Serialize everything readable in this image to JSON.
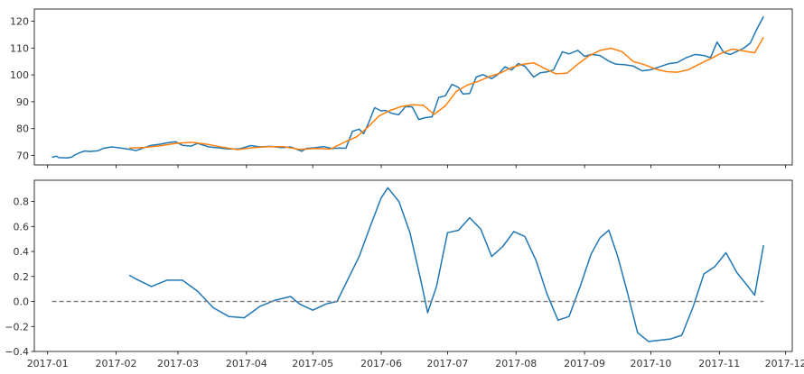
{
  "chart_data": [
    {
      "type": "line",
      "title": "",
      "xlabel": "",
      "ylabel": "",
      "x_range": [
        "2016-12-26",
        "2017-12-04"
      ],
      "ylim": [
        66.5,
        124.5
      ],
      "grid": false,
      "y_ticks": [
        70,
        80,
        90,
        100,
        110,
        120
      ],
      "x_ticks": [
        "2017-01",
        "2017-02",
        "2017-03",
        "2017-04",
        "2017-05",
        "2017-06",
        "2017-07",
        "2017-08",
        "2017-09",
        "2017-10",
        "2017-11",
        "2017-12"
      ],
      "x_tick_labels_shown": false,
      "colors": [
        "#1f77b4",
        "#ff7f0e"
      ],
      "series": [
        {
          "x": [
            "2017-01-03",
            "2017-01-05",
            "2017-01-06",
            "2017-01-10",
            "2017-01-12",
            "2017-01-13",
            "2017-01-16",
            "2017-01-18",
            "2017-01-20",
            "2017-01-24",
            "2017-01-26",
            "2017-01-30",
            "2017-02-03",
            "2017-02-08",
            "2017-02-10",
            "2017-02-14",
            "2017-02-17",
            "2017-02-21",
            "2017-02-24",
            "2017-02-28",
            "2017-03-03",
            "2017-03-07",
            "2017-03-10",
            "2017-03-15",
            "2017-03-20",
            "2017-03-24",
            "2017-03-29",
            "2017-04-03",
            "2017-04-07",
            "2017-04-12",
            "2017-04-17",
            "2017-04-21",
            "2017-04-26",
            "2017-04-28",
            "2017-05-02",
            "2017-05-06",
            "2017-05-10",
            "2017-05-13",
            "2017-05-16",
            "2017-05-19",
            "2017-05-22",
            "2017-05-24",
            "2017-05-26",
            "2017-05-29",
            "2017-06-01",
            "2017-06-03",
            "2017-06-06",
            "2017-06-09",
            "2017-06-12",
            "2017-06-15",
            "2017-06-18",
            "2017-06-21",
            "2017-06-24",
            "2017-06-27",
            "2017-06-30",
            "2017-07-03",
            "2017-07-06",
            "2017-07-08",
            "2017-07-11",
            "2017-07-14",
            "2017-07-17",
            "2017-07-21",
            "2017-07-24",
            "2017-07-27",
            "2017-07-30",
            "2017-08-02",
            "2017-08-05",
            "2017-08-09",
            "2017-08-12",
            "2017-08-15",
            "2017-08-18",
            "2017-08-22",
            "2017-08-25",
            "2017-08-29",
            "2017-09-01",
            "2017-09-04",
            "2017-09-08",
            "2017-09-12",
            "2017-09-15",
            "2017-09-19",
            "2017-09-23",
            "2017-09-27",
            "2017-10-01",
            "2017-10-05",
            "2017-10-09",
            "2017-10-13",
            "2017-10-17",
            "2017-10-21",
            "2017-10-25",
            "2017-10-28",
            "2017-10-31",
            "2017-11-03",
            "2017-11-06",
            "2017-11-09",
            "2017-11-12",
            "2017-11-15",
            "2017-11-18",
            "2017-11-21"
          ],
          "y": [
            69.3,
            69.8,
            69.2,
            69.1,
            69.4,
            70.1,
            71.2,
            71.7,
            71.5,
            71.8,
            72.6,
            73.2,
            72.8,
            72.2,
            71.8,
            73.0,
            73.8,
            74.2,
            74.7,
            75.1,
            73.8,
            73.5,
            74.5,
            73.2,
            72.8,
            72.4,
            72.5,
            73.7,
            73.2,
            73.4,
            72.9,
            73.2,
            71.6,
            72.6,
            72.9,
            73.3,
            72.6,
            72.8,
            72.7,
            79.0,
            79.8,
            78.1,
            81.6,
            87.8,
            86.6,
            86.8,
            85.6,
            85.2,
            88.2,
            88.1,
            83.4,
            84.1,
            84.4,
            91.6,
            92.2,
            96.5,
            95.3,
            92.9,
            93.1,
            99.2,
            100.1,
            98.6,
            100.3,
            103.0,
            101.8,
            104.2,
            103.2,
            99.2,
            100.8,
            101.1,
            101.9,
            108.6,
            107.8,
            109.1,
            106.9,
            107.6,
            107.2,
            105.1,
            104.0,
            103.8,
            103.3,
            101.5,
            101.9,
            103.0,
            104.1,
            104.6,
            106.4,
            107.6,
            107.2,
            106.4,
            112.2,
            108.3,
            107.6,
            108.7,
            109.9,
            111.8,
            117.1,
            121.7
          ]
        },
        {
          "x": [
            "2017-02-07",
            "2017-02-14",
            "2017-02-21",
            "2017-02-28",
            "2017-03-07",
            "2017-03-14",
            "2017-03-21",
            "2017-03-28",
            "2017-04-04",
            "2017-04-11",
            "2017-04-18",
            "2017-04-25",
            "2017-05-02",
            "2017-05-09",
            "2017-05-16",
            "2017-05-21",
            "2017-05-26",
            "2017-05-31",
            "2017-06-05",
            "2017-06-10",
            "2017-06-15",
            "2017-06-20",
            "2017-06-25",
            "2017-06-30",
            "2017-07-05",
            "2017-07-10",
            "2017-07-15",
            "2017-07-20",
            "2017-07-25",
            "2017-07-30",
            "2017-08-04",
            "2017-08-09",
            "2017-08-14",
            "2017-08-19",
            "2017-08-24",
            "2017-08-29",
            "2017-09-03",
            "2017-09-08",
            "2017-09-13",
            "2017-09-18",
            "2017-09-23",
            "2017-09-28",
            "2017-10-03",
            "2017-10-08",
            "2017-10-13",
            "2017-10-18",
            "2017-10-23",
            "2017-10-28",
            "2017-11-02",
            "2017-11-07",
            "2017-11-12",
            "2017-11-17",
            "2017-11-21"
          ],
          "y": [
            72.8,
            73.0,
            73.6,
            74.5,
            74.9,
            74.2,
            73.1,
            72.2,
            72.9,
            73.3,
            73.3,
            72.3,
            72.6,
            72.4,
            75.2,
            77.0,
            80.6,
            84.7,
            86.8,
            88.2,
            88.9,
            88.7,
            85.3,
            88.5,
            93.9,
            96.2,
            97.6,
            99.4,
            100.7,
            102.7,
            103.9,
            104.5,
            102.4,
            100.4,
            100.6,
            104.0,
            107.1,
            109.1,
            109.9,
            108.6,
            105.0,
            103.8,
            102.2,
            101.2,
            101.0,
            101.9,
            104.0,
            106.0,
            108.1,
            109.6,
            108.9,
            108.2,
            114.0
          ]
        }
      ]
    },
    {
      "type": "line",
      "title": "",
      "xlabel": "",
      "ylabel": "",
      "x_range": [
        "2016-12-26",
        "2017-12-04"
      ],
      "ylim": [
        -0.4,
        0.97
      ],
      "grid": false,
      "y_ticks": [
        -0.4,
        -0.2,
        0.0,
        0.2,
        0.4,
        0.6,
        0.8
      ],
      "y_tick_labels": [
        "−0.4",
        "−0.2",
        "0.0",
        "0.2",
        "0.4",
        "0.6",
        "0.8"
      ],
      "x_ticks": [
        "2017-01",
        "2017-02",
        "2017-03",
        "2017-04",
        "2017-05",
        "2017-06",
        "2017-07",
        "2017-08",
        "2017-09",
        "2017-10",
        "2017-11",
        "2017-12"
      ],
      "x_tick_labels": [
        "2017-01",
        "2017-02",
        "2017-03",
        "2017-04",
        "2017-05",
        "2017-06",
        "2017-07",
        "2017-08",
        "2017-09",
        "2017-10",
        "2017-11",
        "2017-12"
      ],
      "colors": [
        "#1f77b4",
        "#808080"
      ],
      "series": [
        {
          "x": [
            "2017-02-07",
            "2017-02-10",
            "2017-02-17",
            "2017-02-24",
            "2017-03-03",
            "2017-03-10",
            "2017-03-17",
            "2017-03-24",
            "2017-03-31",
            "2017-04-07",
            "2017-04-14",
            "2017-04-21",
            "2017-04-25",
            "2017-05-01",
            "2017-05-07",
            "2017-05-12",
            "2017-05-17",
            "2017-05-22",
            "2017-05-27",
            "2017-06-01",
            "2017-06-04",
            "2017-06-09",
            "2017-06-14",
            "2017-06-19",
            "2017-06-22",
            "2017-06-26",
            "2017-07-01",
            "2017-07-06",
            "2017-07-11",
            "2017-07-16",
            "2017-07-21",
            "2017-07-26",
            "2017-07-31",
            "2017-08-05",
            "2017-08-10",
            "2017-08-15",
            "2017-08-20",
            "2017-08-25",
            "2017-08-30",
            "2017-09-04",
            "2017-09-08",
            "2017-09-12",
            "2017-09-16",
            "2017-09-20",
            "2017-09-25",
            "2017-09-30",
            "2017-10-05",
            "2017-10-10",
            "2017-10-15",
            "2017-10-20",
            "2017-10-25",
            "2017-10-30",
            "2017-11-04",
            "2017-11-09",
            "2017-11-14",
            "2017-11-17",
            "2017-11-21"
          ],
          "y": [
            0.21,
            0.18,
            0.12,
            0.17,
            0.17,
            0.08,
            -0.05,
            -0.12,
            -0.13,
            -0.04,
            0.01,
            0.04,
            -0.02,
            -0.07,
            -0.02,
            0.0,
            0.18,
            0.36,
            0.6,
            0.83,
            0.91,
            0.8,
            0.55,
            0.16,
            -0.09,
            0.12,
            0.55,
            0.57,
            0.67,
            0.58,
            0.36,
            0.44,
            0.56,
            0.52,
            0.33,
            0.06,
            -0.15,
            -0.12,
            0.12,
            0.38,
            0.51,
            0.57,
            0.36,
            0.1,
            -0.25,
            -0.32,
            -0.31,
            -0.3,
            -0.27,
            -0.05,
            0.22,
            0.28,
            0.39,
            0.23,
            0.12,
            0.05,
            0.45
          ]
        },
        {
          "style": "dashed",
          "x": [
            "2017-01-03",
            "2017-11-21"
          ],
          "y": [
            0,
            0
          ]
        }
      ]
    }
  ]
}
